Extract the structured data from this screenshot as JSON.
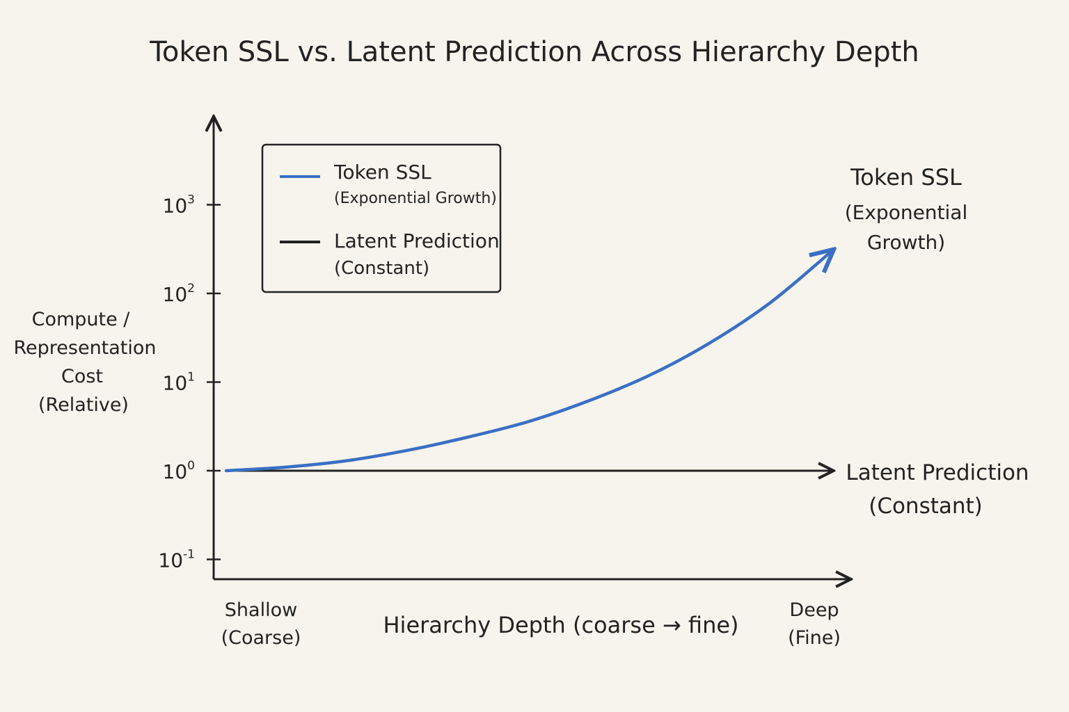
{
  "chart_data": {
    "type": "line",
    "title": "Token SSL vs. Latent Prediction Across Hierarchy Depth",
    "ylabel_lines": [
      "Compute /",
      "Representation",
      "Cost",
      "(Relative)"
    ],
    "xlabel": "Hierarchy Depth (coarse → fine)",
    "x_ends": {
      "start": [
        "Shallow",
        "(Coarse)"
      ],
      "end": [
        "Deep",
        "(Fine)"
      ]
    },
    "yscale": "log",
    "y_ticks": [
      {
        "base": "10",
        "exp": "3",
        "value": 1000
      },
      {
        "base": "10",
        "exp": "2",
        "value": 100
      },
      {
        "base": "10",
        "exp": "1",
        "value": 10
      },
      {
        "base": "10",
        "exp": "0",
        "value": 1
      },
      {
        "base": "10",
        "exp": "-1",
        "value": 0.1
      }
    ],
    "xlim": [
      0,
      1
    ],
    "ylim": [
      0.1,
      1000
    ],
    "grid": false,
    "legend_position": "top-left",
    "series": [
      {
        "name": "Token SSL",
        "sub": "(Exponential Growth)",
        "inline_label": [
          "Token SSL",
          "(Exponential",
          "Growth)"
        ],
        "color": "#3a6fc4",
        "x": [
          0,
          0.1,
          0.2,
          0.3,
          0.4,
          0.5,
          0.6,
          0.7,
          0.8,
          0.9,
          1.0
        ],
        "y": [
          1,
          1.1,
          1.3,
          1.7,
          2.4,
          3.6,
          6.2,
          12,
          28,
          80,
          300
        ]
      },
      {
        "name": "Latent Prediction",
        "sub": "(Constant)",
        "inline_label": [
          "Latent Prediction",
          "(Constant)"
        ],
        "color": "#222222",
        "x": [
          0,
          1.0
        ],
        "y": [
          1,
          1
        ]
      }
    ]
  }
}
